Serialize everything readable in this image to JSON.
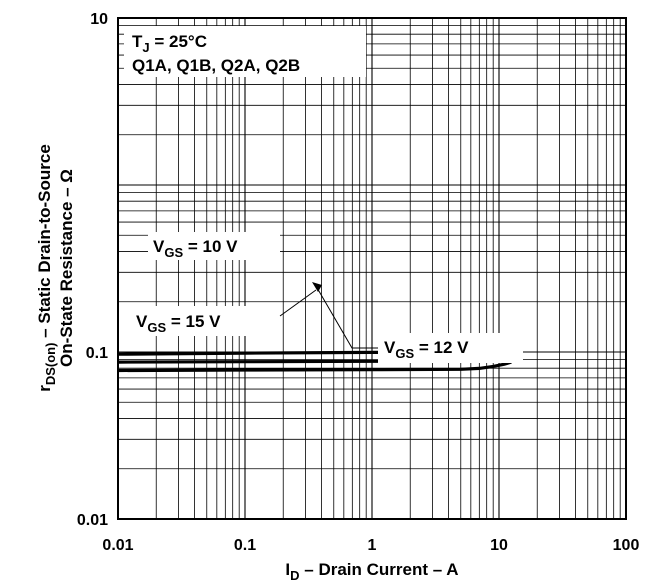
{
  "chart_data": {
    "type": "line",
    "x_scale": "log",
    "y_scale": "log",
    "xlim": [
      0.01,
      100
    ],
    "ylim": [
      0.01,
      10
    ],
    "grid": true,
    "x_ticks": [
      "0.01",
      "0.1",
      "1",
      "10",
      "100"
    ],
    "y_ticks": [
      "10",
      "0.1",
      "0.01"
    ],
    "xlabel": {
      "main": "I",
      "sub": "D",
      "rest": " – Drain Current – A"
    },
    "ylabel_line1": {
      "main": "r",
      "sub": "DS(on)",
      "rest": " – Static Drain-to-Source"
    },
    "ylabel_line2": "On-State Resistance – Ω",
    "conditions": {
      "line1": {
        "main": "T",
        "sub": "J",
        "rest": " = 25°C"
      },
      "line2": "Q1A, Q1B, Q2A, Q2B"
    },
    "series": [
      {
        "name": "VGS = 10 V",
        "points": [
          [
            0.01,
            0.097
          ],
          [
            0.1,
            0.0985
          ],
          [
            1,
            0.0995
          ],
          [
            5,
            0.1
          ],
          [
            7,
            0.1015
          ],
          [
            9,
            0.105
          ],
          [
            11,
            0.108
          ],
          [
            12.5,
            0.112
          ]
        ]
      },
      {
        "name": "VGS = 12 V",
        "points": [
          [
            0.01,
            0.087
          ],
          [
            0.1,
            0.0875
          ],
          [
            1,
            0.088
          ],
          [
            5,
            0.0885
          ],
          [
            7,
            0.0895
          ],
          [
            9,
            0.092
          ],
          [
            11,
            0.095
          ],
          [
            12.5,
            0.098
          ]
        ]
      },
      {
        "name": "VGS = 15 V",
        "points": [
          [
            0.01,
            0.0775
          ],
          [
            0.1,
            0.078
          ],
          [
            1,
            0.0783
          ],
          [
            5,
            0.0788
          ],
          [
            7,
            0.0798
          ],
          [
            9,
            0.082
          ],
          [
            11,
            0.0845
          ],
          [
            12.5,
            0.087
          ]
        ]
      }
    ],
    "annotations": [
      {
        "main": "V",
        "sub": "GS",
        "rest": " = 10 V"
      },
      {
        "main": "V",
        "sub": "GS",
        "rest": " = 15 V"
      },
      {
        "main": "V",
        "sub": "GS",
        "rest": " = 12 V"
      }
    ]
  }
}
